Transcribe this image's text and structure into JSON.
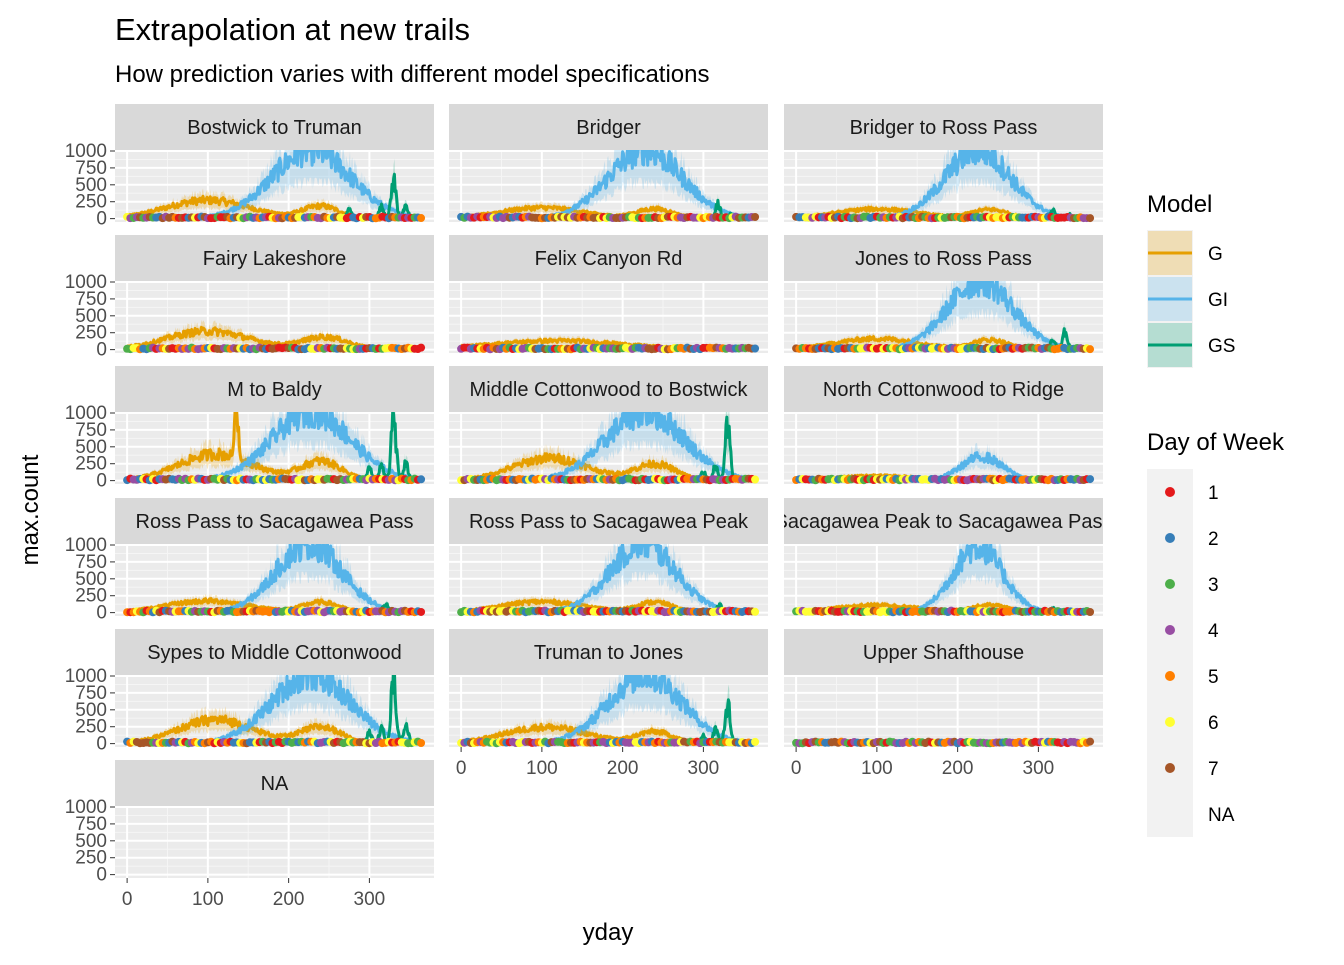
{
  "title": "Extrapolation at new trails",
  "subtitle": "How prediction varies with different model specifications",
  "chart_data": {
    "type": "faceted_line_area_scatter",
    "title": "Extrapolation at new trails",
    "subtitle": "How prediction varies with different model specifications",
    "xlabel": "yday",
    "ylabel": "max.count",
    "xlim": [
      -15,
      380
    ],
    "ylim": [
      -50,
      1000
    ],
    "x_ticks": [
      0,
      100,
      200,
      300
    ],
    "y_ticks": [
      0,
      250,
      500,
      750,
      1000
    ],
    "x_tick_labels": [
      "0",
      "100",
      "200",
      "300"
    ],
    "y_tick_labels": [
      "0",
      "250",
      "500",
      "750",
      "1000"
    ],
    "grid": true,
    "legend_position": "right",
    "legends": [
      {
        "title": "Model",
        "kind": "line",
        "entries": [
          {
            "label": "G",
            "color": "#E69F00"
          },
          {
            "label": "GI",
            "color": "#56B4E9"
          },
          {
            "label": "GS",
            "color": "#009E73"
          }
        ]
      },
      {
        "title": "Day of Week",
        "kind": "point",
        "entries": [
          {
            "label": "1",
            "color": "#E41A1C"
          },
          {
            "label": "2",
            "color": "#377EB8"
          },
          {
            "label": "3",
            "color": "#4DAF4A"
          },
          {
            "label": "4",
            "color": "#984EA3"
          },
          {
            "label": "5",
            "color": "#FF7F00"
          },
          {
            "label": "6",
            "color": "#FFFF33"
          },
          {
            "label": "7",
            "color": "#A65628"
          },
          {
            "label": "NA",
            "color": null
          }
        ]
      }
    ],
    "model_colors": {
      "G": "#E69F00",
      "GI": "#56B4E9",
      "GS": "#009E73"
    },
    "facets": [
      {
        "strip": "Bostwick to Truman",
        "G": {
          "peaks": [
            {
              "x": 100,
              "y": 260,
              "w": 50
            },
            {
              "x": 240,
              "y": 170,
              "w": 22
            }
          ]
        },
        "GI": {
          "peaks": [
            {
              "x": 228,
              "y": 1000,
              "w": 48
            }
          ]
        },
        "GS": {
          "peaks": [
            {
              "x": 330,
              "y": 560,
              "w": 3
            },
            {
              "x": 315,
              "y": 160,
              "w": 3
            },
            {
              "x": 345,
              "y": 150,
              "w": 3
            },
            {
              "x": 275,
              "y": 120,
              "w": 3
            }
          ]
        }
      },
      {
        "strip": "Bridger",
        "G": {
          "peaks": [
            {
              "x": 100,
              "y": 150,
              "w": 50
            },
            {
              "x": 240,
              "y": 130,
              "w": 22
            }
          ]
        },
        "GI": {
          "peaks": [
            {
              "x": 228,
              "y": 1000,
              "w": 45
            }
          ]
        },
        "GS": {
          "peaks": [
            {
              "x": 318,
              "y": 200,
              "w": 3
            },
            {
              "x": 335,
              "y": 60,
              "w": 3
            }
          ]
        }
      },
      {
        "strip": "Bridger to Ross Pass",
        "G": {
          "peaks": [
            {
              "x": 100,
              "y": 130,
              "w": 50
            },
            {
              "x": 240,
              "y": 120,
              "w": 22
            }
          ]
        },
        "GI": {
          "peaks": [
            {
              "x": 225,
              "y": 1000,
              "w": 40
            }
          ]
        },
        "GS": {
          "peaks": [
            {
              "x": 318,
              "y": 110,
              "w": 3
            },
            {
              "x": 338,
              "y": 60,
              "w": 3
            }
          ]
        }
      },
      {
        "strip": "Fairy Lakeshore",
        "G": {
          "peaks": [
            {
              "x": 100,
              "y": 260,
              "w": 50
            },
            {
              "x": 245,
              "y": 170,
              "w": 28
            }
          ]
        },
        "GI": {
          "peaks": []
        },
        "GS": {
          "peaks": []
        }
      },
      {
        "strip": "Felix Canyon Rd",
        "G": {
          "peaks": [
            {
              "x": 120,
              "y": 120,
              "w": 80
            }
          ]
        },
        "GI": {
          "peaks": []
        },
        "GS": {
          "peaks": []
        }
      },
      {
        "strip": "Jones to Ross Pass",
        "G": {
          "peaks": [
            {
              "x": 100,
              "y": 150,
              "w": 50
            },
            {
              "x": 240,
              "y": 130,
              "w": 22
            }
          ]
        },
        "GI": {
          "peaks": [
            {
              "x": 228,
              "y": 1000,
              "w": 40
            }
          ]
        },
        "GS": {
          "peaks": [
            {
              "x": 333,
              "y": 240,
              "w": 3
            },
            {
              "x": 318,
              "y": 120,
              "w": 3
            }
          ]
        }
      },
      {
        "strip": "M to Baldy",
        "G": {
          "peaks": [
            {
              "x": 110,
              "y": 380,
              "w": 45
            },
            {
              "x": 240,
              "y": 270,
              "w": 25
            },
            {
              "x": 135,
              "y": 1000,
              "w": 2
            }
          ]
        },
        "GI": {
          "peaks": [
            {
              "x": 228,
              "y": 1000,
              "w": 48
            }
          ]
        },
        "GS": {
          "peaks": [
            {
              "x": 330,
              "y": 950,
              "w": 3
            },
            {
              "x": 345,
              "y": 230,
              "w": 3
            },
            {
              "x": 315,
              "y": 200,
              "w": 3
            },
            {
              "x": 300,
              "y": 160,
              "w": 3
            }
          ]
        }
      },
      {
        "strip": "Middle Cottonwood to Bostwick",
        "G": {
          "peaks": [
            {
              "x": 110,
              "y": 320,
              "w": 45
            },
            {
              "x": 240,
              "y": 230,
              "w": 25
            }
          ]
        },
        "GI": {
          "peaks": [
            {
              "x": 228,
              "y": 1000,
              "w": 48
            }
          ]
        },
        "GS": {
          "peaks": [
            {
              "x": 330,
              "y": 820,
              "w": 3
            },
            {
              "x": 315,
              "y": 200,
              "w": 3
            },
            {
              "x": 300,
              "y": 120,
              "w": 3
            }
          ]
        }
      },
      {
        "strip": "North Cottonwood to Ridge",
        "G": {
          "peaks": [
            {
              "x": 100,
              "y": 60,
              "w": 50
            },
            {
              "x": 240,
              "y": 40,
              "w": 22
            }
          ]
        },
        "GI": {
          "peaks": [
            {
              "x": 230,
              "y": 340,
              "w": 25
            }
          ]
        },
        "GS": {
          "peaks": []
        }
      },
      {
        "strip": "Ross Pass to Sacagawea Pass",
        "G": {
          "peaks": [
            {
              "x": 100,
              "y": 160,
              "w": 50
            },
            {
              "x": 240,
              "y": 140,
              "w": 22
            }
          ]
        },
        "GI": {
          "peaks": [
            {
              "x": 225,
              "y": 1000,
              "w": 40
            }
          ]
        },
        "GS": {
          "peaks": [
            {
              "x": 320,
              "y": 120,
              "w": 3
            }
          ]
        }
      },
      {
        "strip": "Ross Pass to Sacagawea Peak",
        "G": {
          "peaks": [
            {
              "x": 100,
              "y": 150,
              "w": 50
            },
            {
              "x": 240,
              "y": 140,
              "w": 22
            }
          ]
        },
        "GI": {
          "peaks": [
            {
              "x": 225,
              "y": 1000,
              "w": 40
            }
          ]
        },
        "GS": {
          "peaks": [
            {
              "x": 320,
              "y": 100,
              "w": 3
            }
          ]
        }
      },
      {
        "strip": "Sacagawea Peak to Sacagawea Pass",
        "G": {
          "peaks": [
            {
              "x": 100,
              "y": 100,
              "w": 50
            },
            {
              "x": 240,
              "y": 100,
              "w": 22
            }
          ]
        },
        "GI": {
          "peaks": [
            {
              "x": 225,
              "y": 960,
              "w": 30
            }
          ]
        },
        "GS": {
          "peaks": [
            {
              "x": 318,
              "y": 60,
              "w": 3
            }
          ]
        }
      },
      {
        "strip": "Sypes to Middle Cottonwood",
        "G": {
          "peaks": [
            {
              "x": 110,
              "y": 340,
              "w": 45
            },
            {
              "x": 240,
              "y": 230,
              "w": 25
            }
          ]
        },
        "GI": {
          "peaks": [
            {
              "x": 228,
              "y": 1000,
              "w": 48
            }
          ]
        },
        "GS": {
          "peaks": [
            {
              "x": 330,
              "y": 1000,
              "w": 3
            },
            {
              "x": 345,
              "y": 270,
              "w": 3
            },
            {
              "x": 315,
              "y": 200,
              "w": 3
            },
            {
              "x": 300,
              "y": 150,
              "w": 3
            }
          ]
        }
      },
      {
        "strip": "Truman to Jones",
        "G": {
          "peaks": [
            {
              "x": 105,
              "y": 230,
              "w": 50
            },
            {
              "x": 240,
              "y": 160,
              "w": 22
            }
          ]
        },
        "GI": {
          "peaks": [
            {
              "x": 228,
              "y": 1000,
              "w": 45
            }
          ]
        },
        "GS": {
          "peaks": [
            {
              "x": 330,
              "y": 580,
              "w": 3
            },
            {
              "x": 315,
              "y": 200,
              "w": 3
            },
            {
              "x": 300,
              "y": 110,
              "w": 3
            }
          ]
        }
      },
      {
        "strip": "Upper Shafthouse",
        "G": {
          "peaks": [
            {
              "x": 150,
              "y": 20,
              "w": 150
            }
          ]
        },
        "GI": {
          "peaks": []
        },
        "GS": {
          "peaks": []
        }
      },
      {
        "strip": "NA",
        "G": {
          "peaks": []
        },
        "GI": {
          "peaks": []
        },
        "GS": {
          "peaks": []
        },
        "empty": true
      }
    ]
  }
}
